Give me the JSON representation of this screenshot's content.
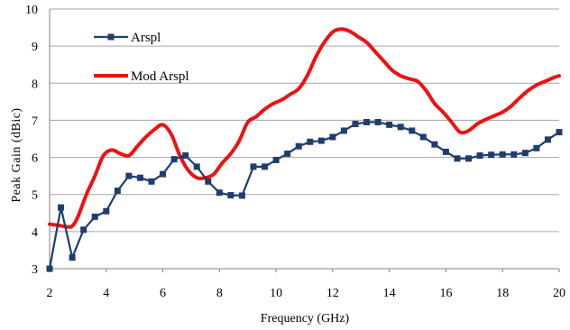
{
  "chart_data": {
    "type": "line",
    "xlabel": "Frequency (GHz)",
    "ylabel": "Peak Gain (dBic)",
    "xlim": [
      2,
      20
    ],
    "ylim": [
      3,
      10
    ],
    "xticks": [
      2,
      4,
      6,
      8,
      10,
      12,
      14,
      16,
      18,
      20
    ],
    "yticks": [
      3,
      4,
      5,
      6,
      7,
      8,
      9,
      10
    ],
    "grid": "horizontal",
    "legend_position": "top-left",
    "series": [
      {
        "name": "Arspl",
        "color": "#1f3d6e",
        "marker": "square",
        "x": [
          2.0,
          2.4,
          2.8,
          3.2,
          3.6,
          4.0,
          4.4,
          4.8,
          5.2,
          5.6,
          6.0,
          6.4,
          6.8,
          7.2,
          7.6,
          8.0,
          8.4,
          8.8,
          9.2,
          9.6,
          10.0,
          10.4,
          10.8,
          11.2,
          11.6,
          12.0,
          12.4,
          12.8,
          13.2,
          13.6,
          14.0,
          14.4,
          14.8,
          15.2,
          15.6,
          16.0,
          16.4,
          16.8,
          17.2,
          17.6,
          18.0,
          18.4,
          18.8,
          19.2,
          19.6,
          20.0
        ],
        "y": [
          3.0,
          4.65,
          3.3,
          4.05,
          4.4,
          4.55,
          5.1,
          5.5,
          5.45,
          5.35,
          5.55,
          5.95,
          6.05,
          5.75,
          5.35,
          5.05,
          4.98,
          4.97,
          5.75,
          5.75,
          5.93,
          6.1,
          6.3,
          6.42,
          6.45,
          6.55,
          6.72,
          6.9,
          6.95,
          6.95,
          6.88,
          6.82,
          6.72,
          6.55,
          6.35,
          6.15,
          5.97,
          5.97,
          6.05,
          6.07,
          6.08,
          6.08,
          6.12,
          6.25,
          6.48,
          6.68
        ]
      },
      {
        "name": "Mod Arspl",
        "color": "#ee1111",
        "marker": "none",
        "x": [
          2.0,
          2.3,
          2.6,
          2.8,
          3.0,
          3.3,
          3.6,
          3.9,
          4.2,
          4.5,
          4.8,
          5.1,
          5.4,
          5.7,
          6.0,
          6.3,
          6.6,
          6.9,
          7.2,
          7.5,
          7.8,
          8.1,
          8.4,
          8.7,
          9.0,
          9.3,
          9.6,
          9.9,
          10.2,
          10.5,
          10.8,
          11.1,
          11.4,
          11.7,
          12.0,
          12.3,
          12.6,
          12.9,
          13.2,
          13.5,
          13.8,
          14.1,
          14.4,
          14.7,
          15.0,
          15.3,
          15.6,
          15.9,
          16.2,
          16.5,
          16.8,
          17.1,
          17.4,
          17.7,
          18.0,
          18.3,
          18.6,
          18.9,
          19.2,
          19.5,
          19.8,
          20.0
        ],
        "y": [
          4.2,
          4.17,
          4.13,
          4.15,
          4.4,
          5.0,
          5.5,
          6.05,
          6.2,
          6.1,
          6.05,
          6.3,
          6.55,
          6.75,
          6.88,
          6.62,
          6.05,
          5.65,
          5.45,
          5.45,
          5.55,
          5.85,
          6.1,
          6.45,
          6.95,
          7.1,
          7.3,
          7.45,
          7.55,
          7.7,
          7.85,
          8.2,
          8.7,
          9.1,
          9.38,
          9.46,
          9.4,
          9.25,
          9.1,
          8.85,
          8.6,
          8.35,
          8.2,
          8.12,
          8.05,
          7.8,
          7.45,
          7.22,
          6.95,
          6.68,
          6.72,
          6.9,
          7.02,
          7.12,
          7.22,
          7.38,
          7.6,
          7.8,
          7.95,
          8.05,
          8.15,
          8.2
        ]
      }
    ]
  }
}
